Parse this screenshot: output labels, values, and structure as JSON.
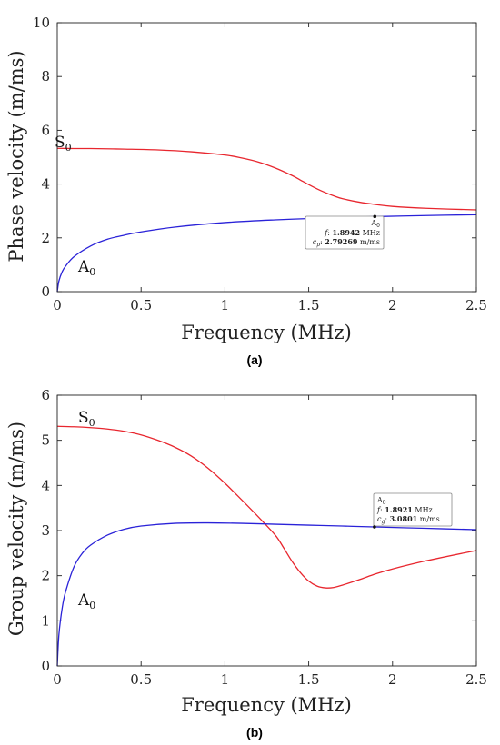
{
  "colors": {
    "a0": "#2a22d8",
    "s0": "#e8262e",
    "axis": "#222222",
    "tip_border": "#888888",
    "tip_bg": "#ffffff"
  },
  "chart_data": [
    {
      "id": "a",
      "type": "line",
      "caption": "(a)",
      "xlabel": "Frequency (MHz)",
      "ylabel": "Phase velocity (m/ms)",
      "xlim": [
        0,
        2.5
      ],
      "ylim": [
        0,
        10
      ],
      "xticks": [
        "0",
        "0.5",
        "1",
        "1.5",
        "2",
        "2.5"
      ],
      "yticks": [
        "0",
        "2",
        "4",
        "6",
        "8",
        "10"
      ],
      "grid": false,
      "series": [
        {
          "name": "S0",
          "label_main": "S",
          "label_sub": "0",
          "color": "#e8262e",
          "x": [
            0,
            0.1,
            0.2,
            0.4,
            0.6,
            0.8,
            1.0,
            1.1,
            1.2,
            1.3,
            1.4,
            1.45,
            1.5,
            1.55,
            1.6,
            1.65,
            1.7,
            1.8,
            1.9,
            2.0,
            2.2,
            2.5
          ],
          "y": [
            5.33,
            5.32,
            5.32,
            5.3,
            5.27,
            5.2,
            5.08,
            4.97,
            4.82,
            4.6,
            4.32,
            4.15,
            3.98,
            3.82,
            3.68,
            3.56,
            3.46,
            3.33,
            3.24,
            3.17,
            3.1,
            3.04
          ]
        },
        {
          "name": "A0",
          "label_main": "A",
          "label_sub": "0",
          "color": "#2a22d8",
          "x": [
            0,
            0.01,
            0.03,
            0.05,
            0.1,
            0.2,
            0.3,
            0.4,
            0.5,
            0.7,
            1.0,
            1.3,
            1.6,
            1.8942,
            2.2,
            2.5
          ],
          "y": [
            0,
            0.4,
            0.75,
            0.95,
            1.3,
            1.7,
            1.95,
            2.1,
            2.22,
            2.4,
            2.57,
            2.67,
            2.74,
            2.79,
            2.83,
            2.86
          ]
        }
      ],
      "datatip": {
        "series": "A0",
        "x": 1.8942,
        "y": 2.79269,
        "title_main": "A",
        "title_sub": "0",
        "f_label": "f",
        "f_value": "1.8942",
        "f_unit": "MHz",
        "c_label_main": "c",
        "c_label_sub": "p",
        "c_value": "2.79269",
        "c_unit": "m/ms"
      }
    },
    {
      "id": "b",
      "type": "line",
      "caption": "(b)",
      "xlabel": "Frequency (MHz)",
      "ylabel": "Group velocity (m/ms)",
      "xlim": [
        0,
        2.5
      ],
      "ylim": [
        0,
        6
      ],
      "xticks": [
        "0",
        "0.5",
        "1",
        "1.5",
        "2",
        "2.5"
      ],
      "yticks": [
        "0",
        "1",
        "2",
        "3",
        "4",
        "5",
        "6"
      ],
      "grid": false,
      "series": [
        {
          "name": "S0",
          "label_main": "S",
          "label_sub": "0",
          "color": "#e8262e",
          "x": [
            0,
            0.1,
            0.2,
            0.3,
            0.4,
            0.5,
            0.6,
            0.7,
            0.8,
            0.9,
            1.0,
            1.1,
            1.2,
            1.3,
            1.35,
            1.4,
            1.45,
            1.5,
            1.55,
            1.6,
            1.65,
            1.7,
            1.8,
            1.9,
            2.0,
            2.2,
            2.5
          ],
          "y": [
            5.31,
            5.3,
            5.28,
            5.25,
            5.2,
            5.12,
            5.0,
            4.85,
            4.65,
            4.38,
            4.05,
            3.68,
            3.3,
            2.9,
            2.62,
            2.32,
            2.07,
            1.88,
            1.77,
            1.73,
            1.74,
            1.79,
            1.91,
            2.04,
            2.15,
            2.33,
            2.56
          ]
        },
        {
          "name": "A0",
          "label_main": "A",
          "label_sub": "0",
          "color": "#2a22d8",
          "x": [
            0,
            0.01,
            0.03,
            0.05,
            0.1,
            0.15,
            0.2,
            0.3,
            0.4,
            0.5,
            0.7,
            0.9,
            1.1,
            1.3,
            1.5,
            1.7,
            1.8921,
            2.2,
            2.5
          ],
          "y": [
            0,
            0.7,
            1.3,
            1.65,
            2.2,
            2.5,
            2.68,
            2.9,
            3.03,
            3.1,
            3.16,
            3.17,
            3.16,
            3.14,
            3.12,
            3.1,
            3.08,
            3.05,
            3.02
          ]
        }
      ],
      "datatip": {
        "series": "A0",
        "x": 1.8921,
        "y": 3.0801,
        "title_main": "A",
        "title_sub": "0",
        "f_label": "f",
        "f_value": "1.8921",
        "f_unit": "MHz",
        "c_label_main": "c",
        "c_label_sub": "g",
        "c_value": "3.0801",
        "c_unit": "m/ms"
      }
    }
  ]
}
